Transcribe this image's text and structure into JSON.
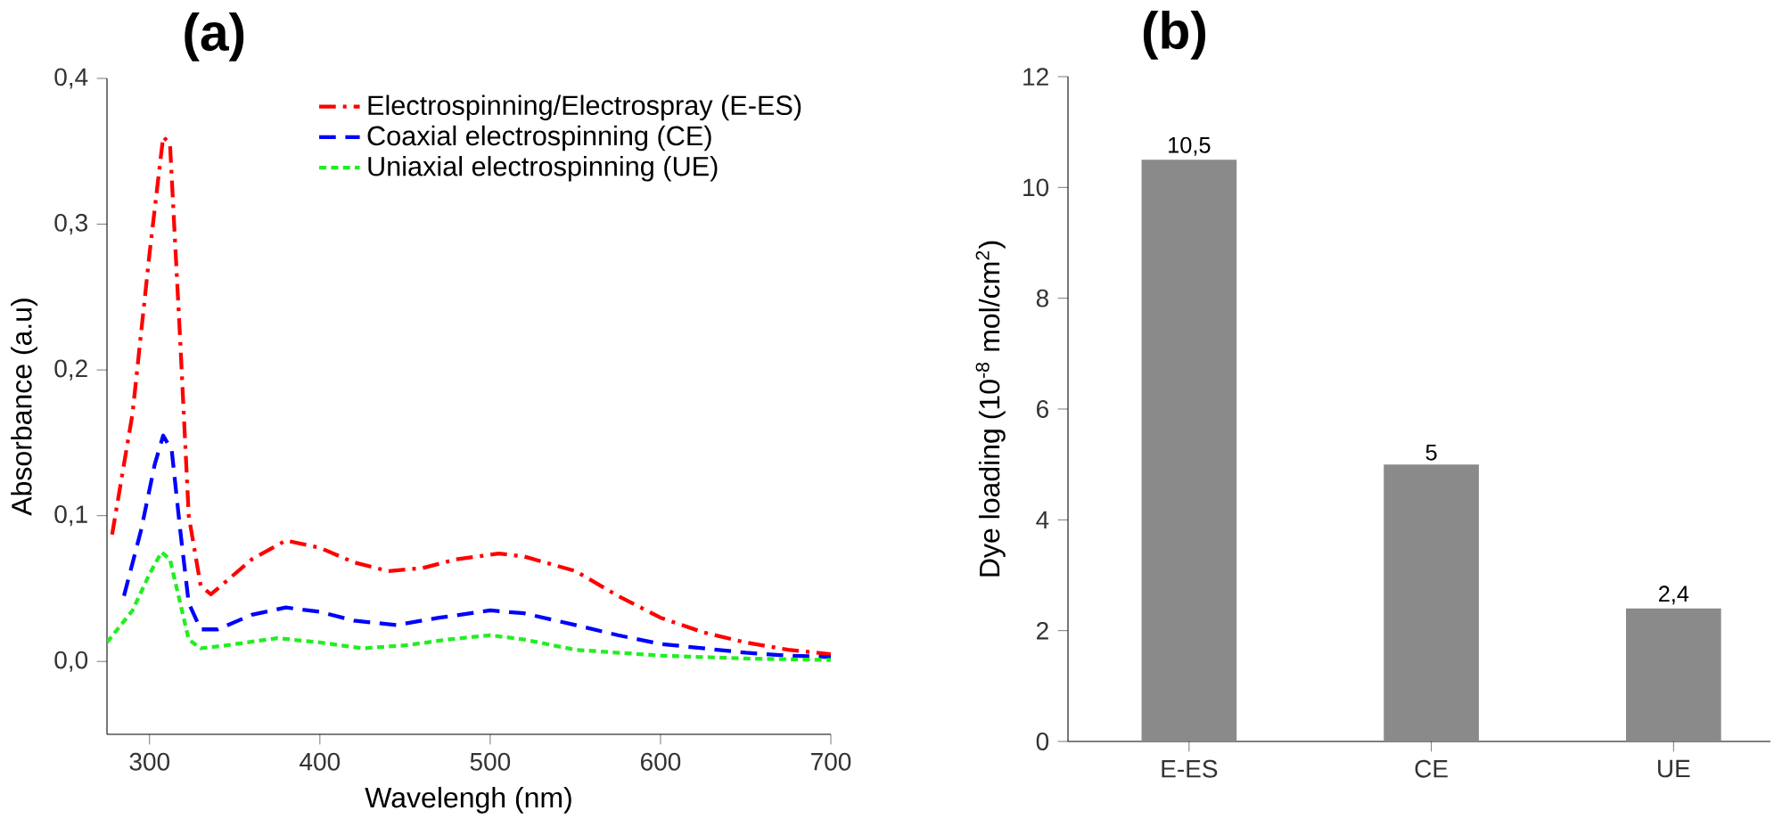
{
  "chart_data": [
    {
      "type": "line",
      "title": "(a)",
      "xlabel": "Wavelengh (nm)",
      "ylabel": "Absorbance (a.u)",
      "xlim": [
        275,
        700
      ],
      "ylim": [
        -0.05,
        0.4
      ],
      "xticks": [
        300,
        400,
        500,
        600,
        700
      ],
      "yticks": [
        {
          "value": 0,
          "label": "0,0"
        },
        {
          "value": 0.1,
          "label": "0,1"
        },
        {
          "value": 0.2,
          "label": "0,2"
        },
        {
          "value": 0.3,
          "label": "0,3"
        },
        {
          "value": 0.4,
          "label": "0,4"
        }
      ],
      "legend": "top right",
      "series": [
        {
          "name": "Electrospinning/Electrospray (E-ES)",
          "color": "#ff0000",
          "line_style": "dashdot",
          "x": [
            278,
            290,
            300,
            308,
            312,
            318,
            323,
            330,
            336,
            345,
            360,
            380,
            400,
            420,
            440,
            460,
            480,
            505,
            520,
            550,
            575,
            600,
            625,
            650,
            675,
            700
          ],
          "values": [
            0.087,
            0.17,
            0.28,
            0.36,
            0.355,
            0.22,
            0.1,
            0.052,
            0.046,
            0.055,
            0.07,
            0.083,
            0.078,
            0.068,
            0.062,
            0.064,
            0.07,
            0.074,
            0.072,
            0.062,
            0.045,
            0.03,
            0.02,
            0.013,
            0.008,
            0.005
          ]
        },
        {
          "name": "Coaxial electrospinning (CE)",
          "color": "#0000ff",
          "line_style": "dashed",
          "x": [
            285,
            295,
            303,
            308,
            313,
            318,
            323,
            330,
            340,
            360,
            380,
            400,
            420,
            445,
            470,
            500,
            520,
            550,
            575,
            600,
            650,
            675,
            700
          ],
          "values": [
            0.045,
            0.09,
            0.135,
            0.155,
            0.145,
            0.09,
            0.04,
            0.022,
            0.022,
            0.032,
            0.037,
            0.034,
            0.028,
            0.025,
            0.03,
            0.035,
            0.033,
            0.025,
            0.018,
            0.012,
            0.006,
            0.004,
            0.003
          ]
        },
        {
          "name": "Uniaxial electrospinning (UE)",
          "color": "#22ee22",
          "line_style": "dotted",
          "x": [
            275,
            290,
            300,
            307,
            312,
            318,
            323,
            330,
            345,
            375,
            400,
            425,
            450,
            475,
            500,
            520,
            550,
            600,
            650,
            700
          ],
          "values": [
            0.013,
            0.035,
            0.06,
            0.075,
            0.07,
            0.04,
            0.015,
            0.009,
            0.011,
            0.016,
            0.013,
            0.009,
            0.011,
            0.015,
            0.018,
            0.015,
            0.008,
            0.004,
            0.002,
            0.001
          ]
        }
      ]
    },
    {
      "type": "bar",
      "title": "(b)",
      "ylabel": "Dye loading (10$^{-8}$ mol/cm$^{2}$)",
      "categories": [
        "E-ES",
        "CE",
        "UE"
      ],
      "values": [
        10.5,
        5,
        2.4
      ],
      "value_labels": [
        "10,5",
        "5",
        "2,4"
      ],
      "color": "#8a8a8a",
      "ylim": [
        0,
        12
      ],
      "yticks": [
        0,
        2,
        4,
        6,
        8,
        10,
        12
      ]
    }
  ]
}
